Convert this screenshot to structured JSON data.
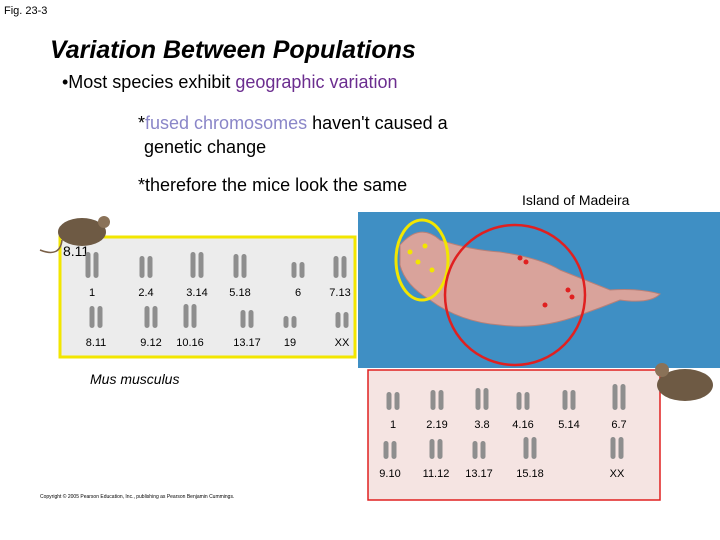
{
  "fig_label": "Fig. 23-3",
  "title": "Variation Between Populations",
  "bullet": {
    "text": "•Most species exhibit ",
    "highlight": "geographic variation"
  },
  "note1": {
    "prefix": "*",
    "highlight": "fused chromosomes",
    "line1": " haven't caused a",
    "line2": "genetic change"
  },
  "note2": "*therefore the mice look the same",
  "map_label": "Island of Madeira",
  "left_karyotype": {
    "label": "8.11",
    "pairs": [
      "1",
      "2.4",
      "3.14",
      "5.18",
      "6",
      "7.13",
      "8.11",
      "9.12",
      "10.16",
      "13.17",
      "19",
      "XX"
    ]
  },
  "species": "Mus musculus",
  "right_karyotype": {
    "pairs": [
      "1",
      "2.19",
      "3.8",
      "4.16",
      "5.14",
      "6.7",
      "9.10",
      "11.12",
      "13.17",
      "15.18",
      "XX"
    ]
  },
  "copyright": "Copyright © 2005 Pearson Education, Inc., publishing as Pearson Benjamin Cummings."
}
